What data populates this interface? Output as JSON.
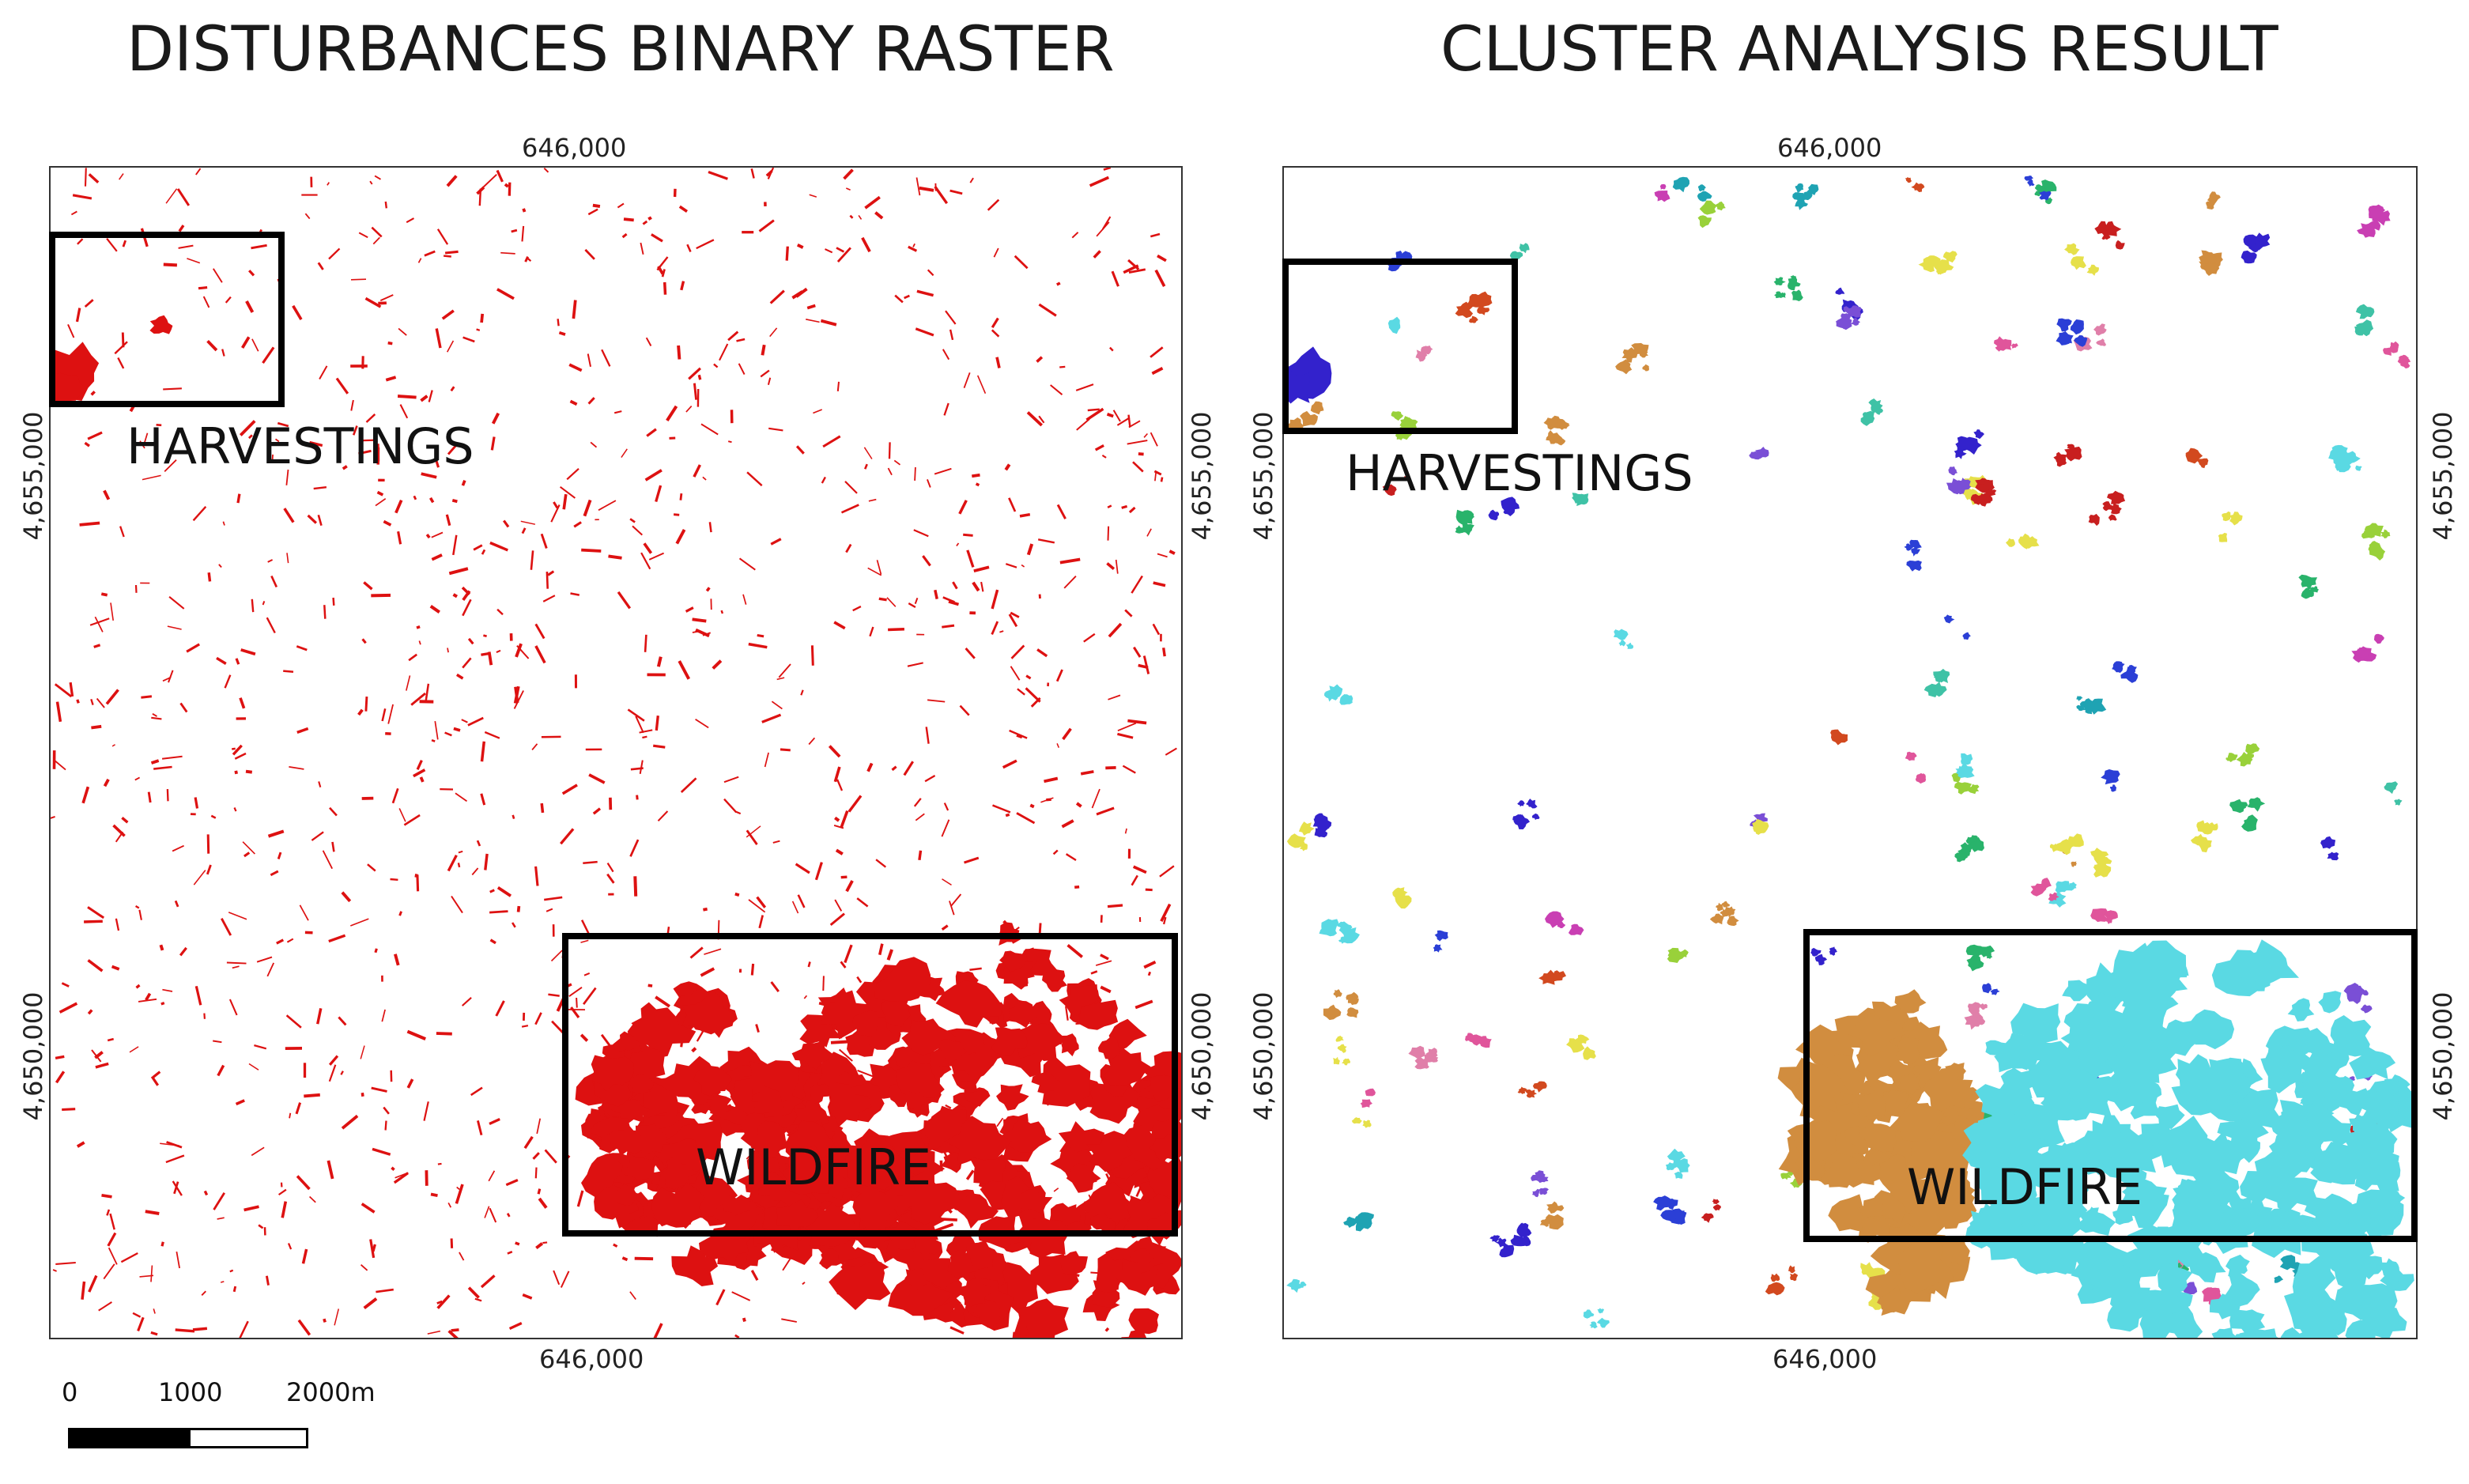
{
  "panels": [
    {
      "title": "DISTURBANCES BINARY RASTER",
      "coord_top": "646,000",
      "coord_bottom": "646,000",
      "coord_left": "4,655,000",
      "coord_right_upper": "4,655,000",
      "coord_left_lower": "4,650,000",
      "coord_right_lower": "4,650,000",
      "label_harvest": "HARVESTINGS",
      "label_fire": "WILDFIRE",
      "fill_color": "#dd1111"
    },
    {
      "title": "CLUSTER ANALYSIS RESULT",
      "coord_top": "646,000",
      "coord_bottom": "646,000",
      "coord_left": "4,655,000",
      "coord_right_upper": "4,655,000",
      "coord_left_lower": "4,650,000",
      "coord_right_lower": "4,650,000",
      "label_harvest": "HARVESTINGS",
      "label_fire": "WILDFIRE",
      "cluster_colors": [
        "#5ad9e3",
        "#d18d3f",
        "#3322cc",
        "#e0559b",
        "#29b36b",
        "#2b3fd6",
        "#c93fb3",
        "#99d13a",
        "#e6e04a",
        "#d2491f",
        "#7a4fd6",
        "#3fc2a6",
        "#e07fa9",
        "#c81f1f",
        "#1fa3b3"
      ]
    }
  ],
  "scale": {
    "labels": [
      "0",
      "1000",
      "2000m"
    ]
  }
}
